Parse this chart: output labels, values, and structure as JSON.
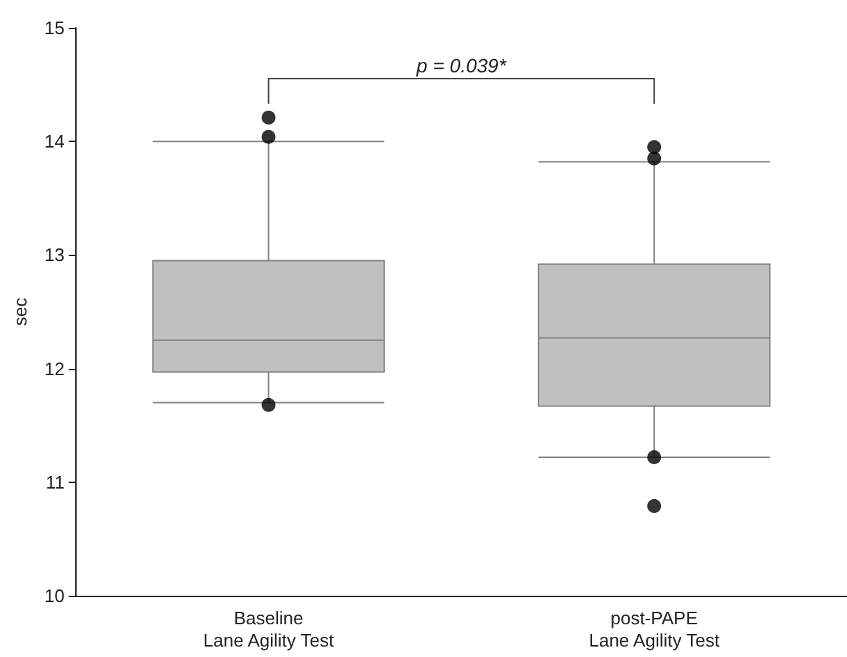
{
  "chart_data": {
    "type": "box",
    "ylabel": "sec",
    "categories": [
      "Baseline\nLane Agility Test",
      "post-PAPE\nLane Agility Test"
    ],
    "boxes": [
      {
        "low": 11.7,
        "q1": 11.97,
        "median": 12.25,
        "q3": 12.95,
        "high": 14.0,
        "outliers": [
          14.21,
          14.04,
          11.68
        ]
      },
      {
        "low": 11.22,
        "q1": 11.67,
        "median": 12.27,
        "q3": 12.92,
        "high": 13.82,
        "outliers": [
          13.95,
          13.85,
          11.22,
          10.79
        ]
      }
    ],
    "color": "#c0c0c0",
    "ylim": [
      10,
      15
    ],
    "yticks": [
      10,
      11,
      12,
      13,
      14,
      15
    ],
    "grid": false,
    "annotations": [
      "p = 0.039*"
    ]
  }
}
